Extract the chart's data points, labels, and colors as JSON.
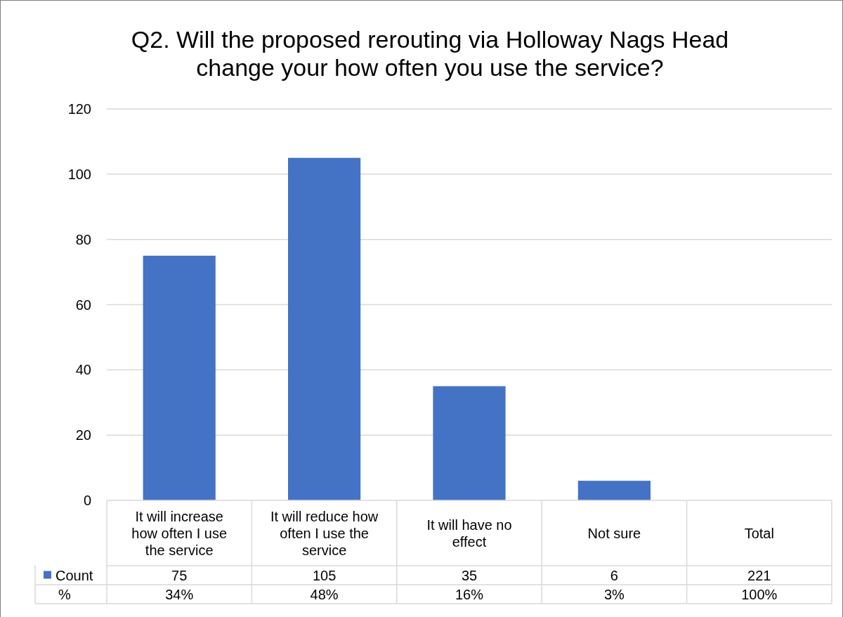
{
  "chart_data": {
    "type": "bar",
    "title": "Q2. Will the proposed rerouting via Holloway Nags Head change your how often you use the service?",
    "categories": [
      "It will increase how often I use the service",
      "It will reduce how often I use the service",
      "It will have no effect",
      "Not sure",
      "Total"
    ],
    "series": [
      {
        "name": "Count",
        "color": "#4472c4",
        "values": [
          75,
          105,
          35,
          6,
          null
        ],
        "value_labels": [
          "75",
          "105",
          "35",
          "6",
          "221"
        ]
      }
    ],
    "annotations": [
      "%",
      "34%",
      "48%",
      "16%",
      "3%",
      "100%"
    ],
    "ylim": [
      0,
      120
    ],
    "yticks": [
      0,
      20,
      40,
      60,
      80,
      100,
      120
    ],
    "grid": "y",
    "legend": "bottom"
  }
}
